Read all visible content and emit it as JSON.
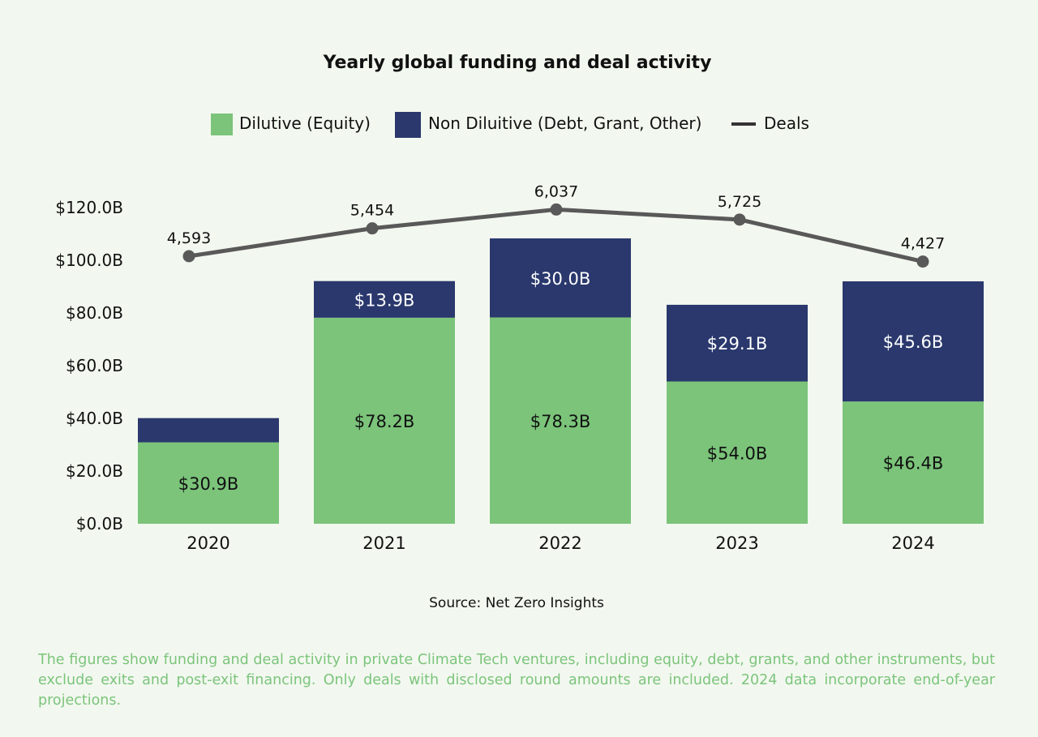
{
  "colors": {
    "dilutive": "#7bc47a",
    "non_dilutive": "#2a386d",
    "deals_line": "#595959",
    "footnote": "#7cc47c"
  },
  "chart_data": {
    "type": "bar",
    "stacked": true,
    "title": "Yearly global funding and deal activity",
    "categories": [
      "2020",
      "2021",
      "2022",
      "2023",
      "2024"
    ],
    "series": [
      {
        "name": "Dilutive (Equity)",
        "values": [
          30.9,
          78.2,
          78.3,
          54.0,
          46.4
        ],
        "labels": [
          "$30.9B",
          "$78.2B",
          "$78.3B",
          "$54.0B",
          "$46.4B"
        ]
      },
      {
        "name": "Non Diluitive (Debt, Grant, Other)",
        "values": [
          9.2,
          13.9,
          30.0,
          29.1,
          45.6
        ],
        "labels": [
          "",
          "$13.9B",
          "$30.0B",
          "$29.1B",
          "$45.6B"
        ]
      }
    ],
    "line_series": {
      "name": "Deals",
      "values": [
        4593,
        5454,
        6037,
        5725,
        4427
      ],
      "labels": [
        "4,593",
        "5,454",
        "6,037",
        "5,725",
        "4,427"
      ]
    },
    "y_ticks": [
      "$0.0B",
      "$20.0B",
      "$40.0B",
      "$60.0B",
      "$80.0B",
      "$100.0B",
      "$120.0B"
    ],
    "ylim": [
      0,
      120
    ],
    "legend_position": "top-center",
    "grid": false,
    "source": "Source: Net Zero Insights"
  },
  "footnote": "The figures show funding and deal activity in private Climate Tech ventures, including equity, debt, grants, and other instruments, but exclude exits and post-exit financing. Only deals with disclosed round amounts are included. 2024 data incorporate end-of-year projections."
}
